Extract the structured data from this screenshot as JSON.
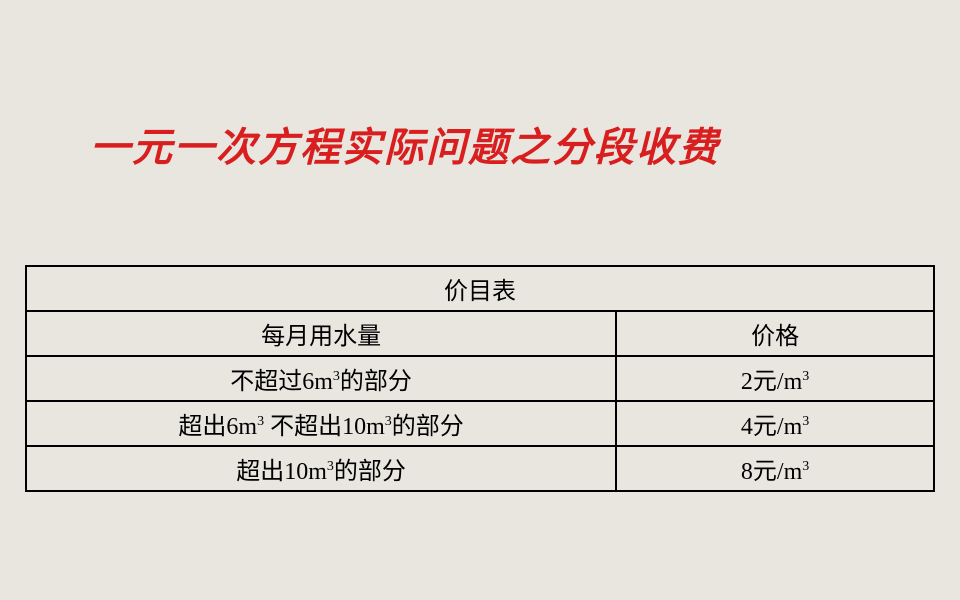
{
  "title": "一元一次方程实际问题之分段收费",
  "table": {
    "header_title": "价目表",
    "columns": [
      "每月用水量",
      "价格"
    ],
    "rows": [
      {
        "usage_prefix": "不超过6m",
        "usage_suffix": "的部分",
        "price_prefix": "2元/m"
      },
      {
        "usage_prefix": "超出6m",
        "usage_mid": " 不超出10m",
        "usage_suffix": "的部分",
        "price_prefix": "4元/m"
      },
      {
        "usage_prefix": "超出10m",
        "usage_suffix": "的部分",
        "price_prefix": "8元/m"
      }
    ],
    "superscript": "3"
  },
  "colors": {
    "background": "#e8e6df",
    "title_color": "#d81e1e",
    "border_color": "#000000",
    "text_color": "#000000"
  },
  "typography": {
    "title_fontsize": 40,
    "table_fontsize": 24,
    "superscript_fontsize": 14
  }
}
